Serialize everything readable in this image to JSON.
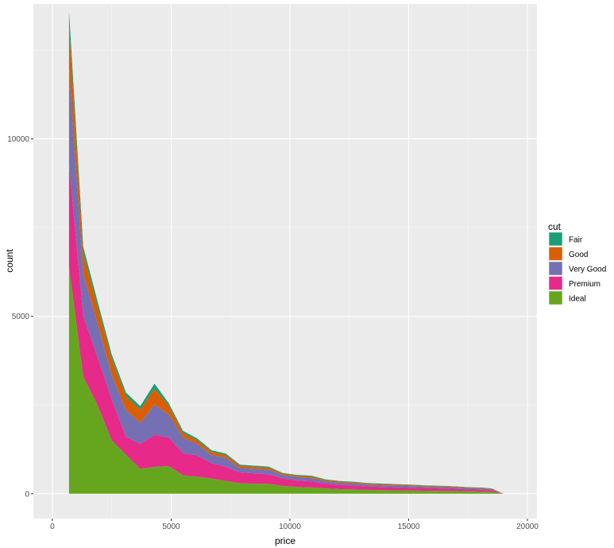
{
  "chart_data": {
    "type": "area",
    "stacked": true,
    "xlabel": "price",
    "ylabel": "count",
    "xlim": [
      -800,
      20400
    ],
    "ylim": [
      -700,
      13800
    ],
    "x_ticks": [
      0,
      5000,
      10000,
      15000,
      20000
    ],
    "x_tick_labels": [
      "0",
      "5000",
      "10000",
      "15000",
      "20000"
    ],
    "y_ticks": [
      0,
      5000,
      10000
    ],
    "y_tick_labels": [
      "0",
      "5000",
      "10000"
    ],
    "grid": true,
    "legend": {
      "title": "cut",
      "placement": "right"
    },
    "x": [
      700,
      1300,
      1900,
      2500,
      3100,
      3700,
      4300,
      4900,
      5500,
      6100,
      6700,
      7300,
      7900,
      8500,
      9100,
      9700,
      10300,
      10900,
      11500,
      12100,
      12700,
      13300,
      13900,
      14500,
      15100,
      15700,
      16300,
      16900,
      17500,
      18100,
      18500,
      19000
    ],
    "series": [
      {
        "name": "Ideal",
        "color": "#66A61E",
        "values": [
          6400,
          3300,
          2500,
          1500,
          1100,
          700,
          760,
          780,
          520,
          480,
          430,
          360,
          300,
          280,
          280,
          220,
          190,
          180,
          150,
          130,
          120,
          110,
          100,
          95,
          90,
          85,
          80,
          75,
          70,
          60,
          50,
          0
        ]
      },
      {
        "name": "Premium",
        "color": "#E7298A",
        "values": [
          2900,
          1700,
          1350,
          1150,
          500,
          700,
          900,
          800,
          620,
          600,
          430,
          400,
          300,
          290,
          270,
          210,
          180,
          170,
          130,
          120,
          110,
          95,
          90,
          85,
          80,
          75,
          70,
          65,
          50,
          50,
          40,
          0
        ]
      },
      {
        "name": "Very Good",
        "color": "#7570B3",
        "values": [
          2700,
          1200,
          950,
          700,
          750,
          600,
          850,
          650,
          440,
          320,
          230,
          250,
          130,
          130,
          130,
          90,
          100,
          100,
          70,
          60,
          60,
          50,
          50,
          50,
          45,
          40,
          40,
          40,
          35,
          35,
          30,
          0
        ]
      },
      {
        "name": "Good",
        "color": "#D95F02",
        "values": [
          1200,
          580,
          480,
          450,
          400,
          370,
          450,
          250,
          130,
          110,
          90,
          80,
          60,
          60,
          60,
          40,
          40,
          40,
          35,
          35,
          30,
          30,
          30,
          25,
          25,
          25,
          25,
          20,
          20,
          20,
          20,
          0
        ]
      },
      {
        "name": "Fair",
        "color": "#1B9E77",
        "values": [
          400,
          180,
          150,
          120,
          100,
          100,
          140,
          70,
          60,
          50,
          45,
          40,
          30,
          30,
          25,
          25,
          20,
          20,
          20,
          15,
          15,
          15,
          15,
          15,
          15,
          12,
          10,
          10,
          10,
          10,
          10,
          0
        ]
      }
    ]
  }
}
